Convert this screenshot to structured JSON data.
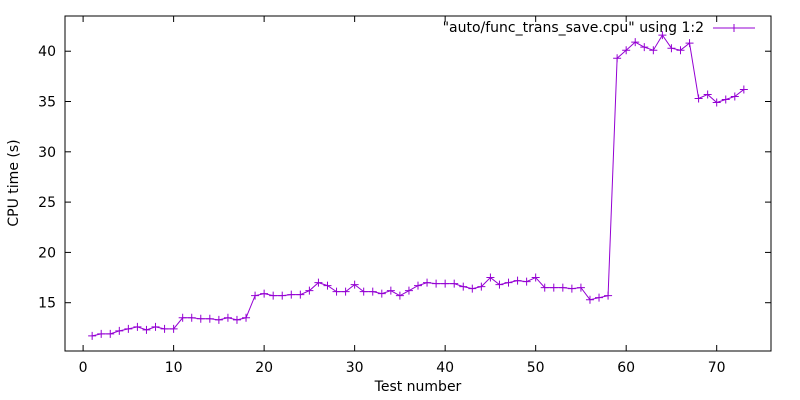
{
  "chart_data": {
    "type": "line",
    "title": "",
    "xlabel": "Test number",
    "ylabel": "CPU time (s)",
    "xlim": [
      -2,
      76
    ],
    "ylim": [
      10.2,
      43.5
    ],
    "xticks": [
      0,
      10,
      20,
      30,
      40,
      50,
      60,
      70
    ],
    "yticks": [
      15,
      20,
      25,
      30,
      35,
      40
    ],
    "legend_position": "top-right",
    "grid": false,
    "series": [
      {
        "name": "\"auto/func_trans_save.cpu\" using 1:2",
        "color": "#9400d3",
        "marker": "plus",
        "x": [
          1,
          2,
          3,
          4,
          5,
          6,
          7,
          8,
          9,
          10,
          11,
          12,
          13,
          14,
          15,
          16,
          17,
          18,
          19,
          20,
          21,
          22,
          23,
          24,
          25,
          26,
          27,
          28,
          29,
          30,
          31,
          32,
          33,
          34,
          35,
          36,
          37,
          38,
          39,
          40,
          41,
          42,
          43,
          44,
          45,
          46,
          47,
          48,
          49,
          50,
          51,
          52,
          53,
          54,
          55,
          56,
          57,
          58,
          59,
          60,
          61,
          62,
          63,
          64,
          65,
          66,
          67,
          68,
          69,
          70,
          71,
          72,
          73
        ],
        "y": [
          11.7,
          11.9,
          11.9,
          12.2,
          12.4,
          12.6,
          12.3,
          12.6,
          12.4,
          12.4,
          13.5,
          13.5,
          13.4,
          13.4,
          13.3,
          13.5,
          13.3,
          13.5,
          15.7,
          15.9,
          15.7,
          15.7,
          15.8,
          15.8,
          16.2,
          17.0,
          16.7,
          16.1,
          16.1,
          16.8,
          16.1,
          16.1,
          15.9,
          16.2,
          15.7,
          16.2,
          16.7,
          17.0,
          16.9,
          16.9,
          16.9,
          16.6,
          16.4,
          16.6,
          17.5,
          16.8,
          17.0,
          17.2,
          17.1,
          17.5,
          16.5,
          16.5,
          16.5,
          16.4,
          16.5,
          15.3,
          15.5,
          15.7,
          39.3,
          40.1,
          40.9,
          40.4,
          40.1,
          41.6,
          40.3,
          40.1,
          40.8,
          35.3,
          35.7,
          34.9,
          35.2,
          35.5,
          36.2
        ]
      }
    ]
  }
}
